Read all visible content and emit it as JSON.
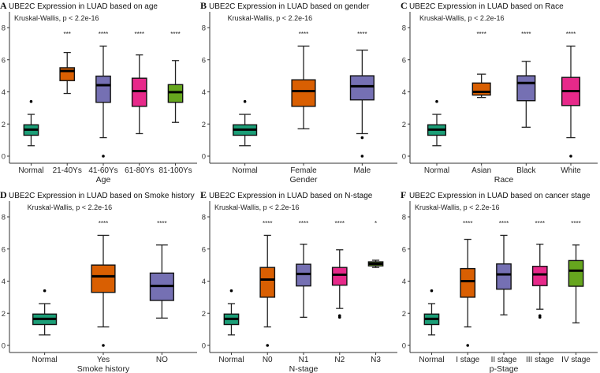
{
  "colors": {
    "Normal": "#1b9e77",
    "c1": "#d95f02",
    "c2": "#7570b3",
    "c3": "#e7298a",
    "c4": "#66a61e"
  },
  "chart_data": [
    {
      "type": "box",
      "letter": "A",
      "title": "UBE2C Expression in LUAD based on age",
      "annotation": "Kruskal-Wallis, p < 2.2e-16",
      "xlabel": "Age",
      "ylim": [
        0,
        8
      ],
      "yticks": [
        0,
        2,
        4,
        6,
        8
      ],
      "categories": [
        "Normal",
        "21-40Ys",
        "41-60Ys",
        "61-80Ys",
        "81-100Ys"
      ],
      "boxes": [
        {
          "min": 0.65,
          "q1": 1.3,
          "median": 1.65,
          "q3": 1.95,
          "max": 2.6,
          "outliers": [
            3.4
          ],
          "sig": ""
        },
        {
          "min": 3.9,
          "q1": 4.7,
          "median": 5.3,
          "q3": 5.5,
          "max": 6.45,
          "outliers": [],
          "sig": "***"
        },
        {
          "min": 1.15,
          "q1": 3.35,
          "median": 4.42,
          "q3": 4.98,
          "max": 6.85,
          "outliers": [
            0
          ],
          "sig": "****"
        },
        {
          "min": 1.4,
          "q1": 3.1,
          "median": 4.05,
          "q3": 4.85,
          "max": 6.3,
          "outliers": [],
          "sig": "****"
        },
        {
          "min": 2.1,
          "q1": 3.35,
          "median": 3.98,
          "q3": 4.45,
          "max": 5.95,
          "outliers": [],
          "sig": "****"
        }
      ]
    },
    {
      "type": "box",
      "letter": "B",
      "title": "UBE2C Expression in LUAD based on gender",
      "annotation": "Kruskal-Wallis, p < 2.2e-16",
      "xlabel": "Gender",
      "ylim": [
        0,
        8
      ],
      "yticks": [
        0,
        2,
        4,
        6,
        8
      ],
      "categories": [
        "Normal",
        "Female",
        "Male"
      ],
      "boxes": [
        {
          "min": 0.65,
          "q1": 1.3,
          "median": 1.65,
          "q3": 1.95,
          "max": 2.6,
          "outliers": [
            3.4
          ],
          "sig": ""
        },
        {
          "min": 1.7,
          "q1": 3.1,
          "median": 4.05,
          "q3": 4.75,
          "max": 6.85,
          "outliers": [],
          "sig": "****"
        },
        {
          "min": 1.4,
          "q1": 3.5,
          "median": 4.35,
          "q3": 5.0,
          "max": 6.6,
          "outliers": [
            1.15,
            0
          ],
          "sig": "****"
        }
      ]
    },
    {
      "type": "box",
      "letter": "C",
      "title": "UBE2C Expression in LUAD based on Race",
      "annotation": "Kruskal-Wallis, p < 2.2e-16",
      "xlabel": "Race",
      "ylim": [
        0,
        8
      ],
      "yticks": [
        0,
        2,
        4,
        6,
        8
      ],
      "categories": [
        "Normal",
        "Asian",
        "Black",
        "White"
      ],
      "boxes": [
        {
          "min": 0.65,
          "q1": 1.3,
          "median": 1.65,
          "q3": 1.95,
          "max": 2.6,
          "outliers": [
            3.4
          ],
          "sig": ""
        },
        {
          "min": 3.65,
          "q1": 3.8,
          "median": 4.0,
          "q3": 4.55,
          "max": 5.1,
          "outliers": [],
          "sig": "****"
        },
        {
          "min": 1.8,
          "q1": 3.45,
          "median": 4.55,
          "q3": 5.0,
          "max": 5.9,
          "outliers": [],
          "sig": "****"
        },
        {
          "min": 1.15,
          "q1": 3.15,
          "median": 4.05,
          "q3": 4.9,
          "max": 6.85,
          "outliers": [
            0
          ],
          "sig": "****"
        }
      ]
    },
    {
      "type": "box",
      "letter": "D",
      "title": "UBE2C Expression in LUAD based on Smoke history",
      "annotation": "Kruskal-Wallis, p < 2.2e-16",
      "xlabel": "Smoke history",
      "ylim": [
        0,
        8
      ],
      "yticks": [
        0,
        2,
        4,
        6,
        8
      ],
      "categories": [
        "Normal",
        "Yes",
        "NO"
      ],
      "boxes": [
        {
          "min": 0.65,
          "q1": 1.3,
          "median": 1.65,
          "q3": 1.95,
          "max": 2.6,
          "outliers": [
            3.4
          ],
          "sig": ""
        },
        {
          "min": 1.15,
          "q1": 3.3,
          "median": 4.3,
          "q3": 5.0,
          "max": 6.85,
          "outliers": [
            0
          ],
          "sig": "****"
        },
        {
          "min": 1.7,
          "q1": 2.8,
          "median": 3.7,
          "q3": 4.5,
          "max": 6.25,
          "outliers": [],
          "sig": "****"
        }
      ]
    },
    {
      "type": "box",
      "letter": "E",
      "title": "UBE2C Expression in LUAD based on N-stage",
      "annotation": "Kruskal-Wallis, p < 2.2e-16",
      "xlabel": "N-stage",
      "ylim": [
        0,
        8
      ],
      "yticks": [
        0,
        2,
        4,
        6,
        8
      ],
      "categories": [
        "Normal",
        "N0",
        "N1",
        "N2",
        "N3"
      ],
      "boxes": [
        {
          "min": 0.65,
          "q1": 1.3,
          "median": 1.65,
          "q3": 1.95,
          "max": 2.6,
          "outliers": [
            3.4
          ],
          "sig": ""
        },
        {
          "min": 1.15,
          "q1": 3.0,
          "median": 4.1,
          "q3": 4.85,
          "max": 6.85,
          "outliers": [
            0
          ],
          "sig": "****"
        },
        {
          "min": 1.75,
          "q1": 3.7,
          "median": 4.45,
          "q3": 5.05,
          "max": 6.3,
          "outliers": [],
          "sig": "****"
        },
        {
          "min": 2.3,
          "q1": 3.75,
          "median": 4.4,
          "q3": 4.85,
          "max": 5.95,
          "outliers": [
            1.85,
            1.75
          ],
          "sig": "****"
        },
        {
          "min": 4.85,
          "q1": 4.95,
          "median": 5.08,
          "q3": 5.2,
          "max": 5.3,
          "outliers": [],
          "sig": "*"
        }
      ]
    },
    {
      "type": "box",
      "letter": "F",
      "title": "UBE2C Expression in LUAD based on cancer stage",
      "annotation": "Kruskal-Wallis, p < 2.2e-16",
      "xlabel": "p-Stage",
      "ylim": [
        0,
        8
      ],
      "yticks": [
        0,
        2,
        4,
        6,
        8
      ],
      "categories": [
        "Normal",
        "I stage",
        "II stage",
        "III stage",
        "IV stage"
      ],
      "boxes": [
        {
          "min": 0.65,
          "q1": 1.3,
          "median": 1.65,
          "q3": 1.95,
          "max": 2.6,
          "outliers": [
            3.4
          ],
          "sig": ""
        },
        {
          "min": 1.15,
          "q1": 3.0,
          "median": 4.0,
          "q3": 4.78,
          "max": 6.6,
          "outliers": [
            0
          ],
          "sig": "****"
        },
        {
          "min": 1.9,
          "q1": 3.5,
          "median": 4.42,
          "q3": 5.07,
          "max": 6.85,
          "outliers": [],
          "sig": "****"
        },
        {
          "min": 2.25,
          "q1": 3.72,
          "median": 4.42,
          "q3": 4.92,
          "max": 6.3,
          "outliers": [
            1.85,
            1.75
          ],
          "sig": "****"
        },
        {
          "min": 1.4,
          "q1": 3.68,
          "median": 4.65,
          "q3": 5.28,
          "max": 6.25,
          "outliers": [],
          "sig": "****"
        }
      ]
    }
  ]
}
